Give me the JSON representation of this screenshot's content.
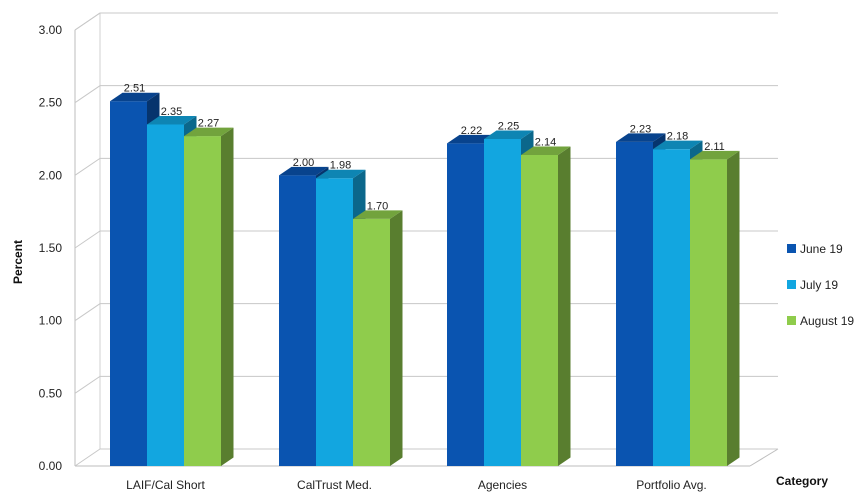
{
  "chart_data": {
    "type": "bar",
    "categories": [
      "LAIF/Cal Short",
      "CalTrust Med.",
      "Agencies",
      "Portfolio Avg."
    ],
    "series": [
      {
        "name": "June 19",
        "values": [
          2.51,
          2.0,
          2.22,
          2.23
        ],
        "color": "#0a54b0"
      },
      {
        "name": "July 19",
        "values": [
          2.35,
          1.98,
          2.25,
          2.18
        ],
        "color": "#12a6e0"
      },
      {
        "name": "August 19",
        "values": [
          2.27,
          1.7,
          2.14,
          2.11
        ],
        "color": "#8fcc4c"
      }
    ],
    "data_labels": [
      [
        "2.51",
        "2.35",
        "2.27"
      ],
      [
        "2.00",
        "1.98",
        "1.70"
      ],
      [
        "2.22",
        "2.25",
        "2.14"
      ],
      [
        "2.23",
        "2.18",
        "2.11"
      ]
    ],
    "y_ticks": [
      "0.00",
      "0.50",
      "1.00",
      "1.50",
      "2.00",
      "2.50",
      "3.00"
    ],
    "ylim": [
      0,
      3
    ],
    "ylabel": "Percent",
    "xlabel": "Category",
    "grid": true,
    "legend": "right",
    "three_d": true
  }
}
